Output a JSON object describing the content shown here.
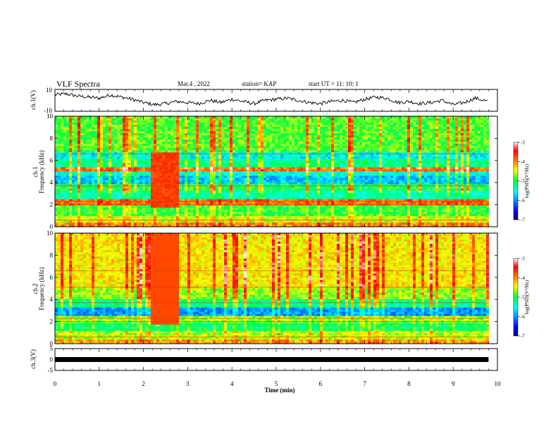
{
  "header": {
    "title": "VLF Spectra",
    "date": "Mar.4 , 2022",
    "station": "station= KAP",
    "start": "start  UT =   11: 10: 1"
  },
  "chart_data": [
    {
      "type": "line",
      "panel": "ch1-waveform",
      "ylabel": "ch.1(V)",
      "ylim": [
        -10,
        10
      ],
      "yticks": [
        "10",
        "-10"
      ],
      "xlim": [
        0,
        10
      ],
      "x": [
        0,
        0.25,
        0.5,
        0.75,
        1.0,
        1.25,
        1.5,
        1.75,
        2.0,
        2.25,
        2.5,
        2.75,
        3.0,
        3.25,
        3.5,
        3.75,
        4.0,
        4.25,
        4.5,
        4.75,
        5.0,
        5.25,
        5.5,
        5.75,
        6.0,
        6.25,
        6.5,
        6.75,
        7.0,
        7.25,
        7.5,
        7.75,
        8.0,
        8.25,
        8.5,
        8.75,
        9.0,
        9.25,
        9.5,
        9.8
      ],
      "values": [
        5,
        6,
        4,
        3,
        2,
        5,
        3,
        1,
        -2,
        -4,
        -3,
        -1,
        -2,
        -3,
        0,
        -2,
        1,
        -1,
        -3,
        0,
        1,
        2,
        0,
        -2,
        -3,
        -1,
        0,
        -2,
        1,
        3,
        2,
        -2,
        -1,
        -3,
        -2,
        0,
        -4,
        -2,
        2,
        -1
      ]
    },
    {
      "type": "heatmap",
      "panel": "ch1-spectrogram",
      "ylabel": "ch.1\nFrequency  (kHz)",
      "ylim": [
        0,
        10
      ],
      "yticks": [
        "0",
        "2",
        "4",
        "6",
        "8",
        "10"
      ],
      "xlim": [
        0,
        10
      ],
      "colorbar": {
        "label": "log(PSD)(V²/Hz)",
        "range": [
          -7,
          -3
        ],
        "ticks": [
          "-3",
          "-4",
          "-5",
          "-6",
          "-7"
        ]
      }
    },
    {
      "type": "heatmap",
      "panel": "ch2-spectrogram",
      "ylabel": "ch.2\nFrequency  (kHz)",
      "ylim": [
        0,
        10
      ],
      "yticks": [
        "0",
        "2",
        "4",
        "6",
        "8",
        "10"
      ],
      "xlim": [
        0,
        10
      ],
      "colorbar": {
        "label": "log(PSD)(V²/Hz)",
        "range": [
          -7,
          -3
        ],
        "ticks": [
          "-3",
          "-4",
          "-5",
          "-6",
          "-7"
        ]
      }
    },
    {
      "type": "line",
      "panel": "ch3-waveform",
      "ylabel": "ch.3(V)",
      "ylim": [
        -5,
        5
      ],
      "yticks": [
        "5",
        "0",
        "-5"
      ],
      "xlim": [
        0,
        10
      ],
      "x": [
        0,
        9.8
      ],
      "values": [
        0,
        0
      ]
    }
  ],
  "xaxis": {
    "label": "Time  (min)",
    "ticks": [
      "0",
      "1",
      "2",
      "3",
      "4",
      "5",
      "6",
      "7",
      "8",
      "9",
      "10"
    ]
  },
  "colors": {
    "jet_low": "#000080",
    "jet_high": "#800000",
    "line": "#000000"
  }
}
